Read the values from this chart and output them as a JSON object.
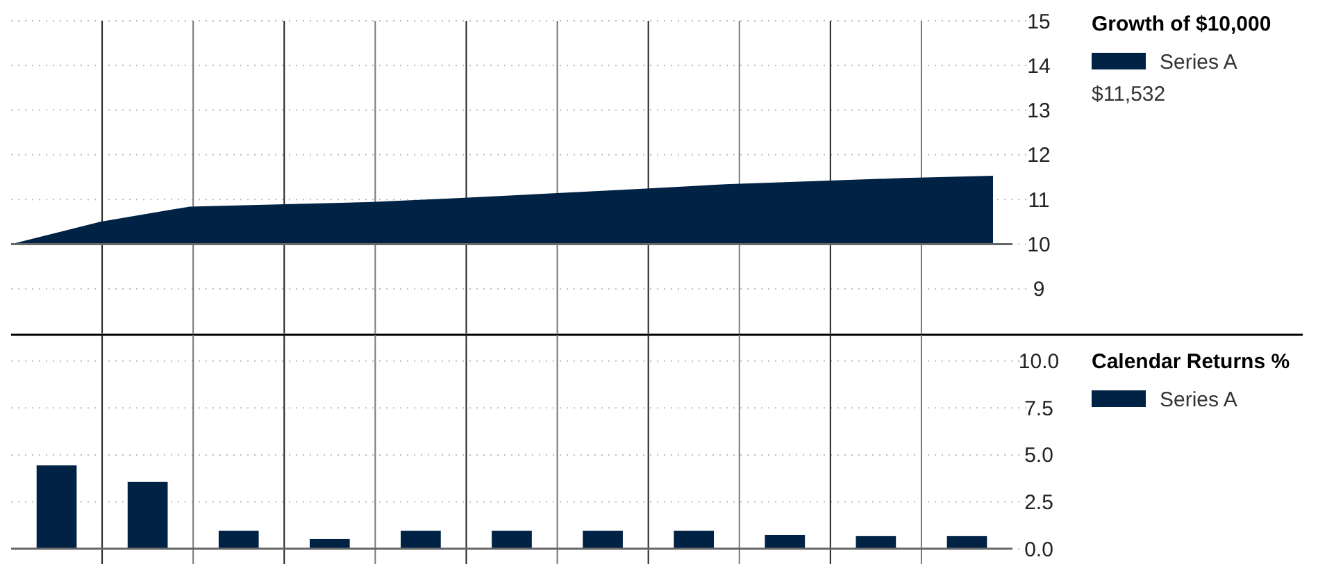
{
  "chart_data": [
    {
      "type": "area",
      "legend_title": "Growth of $10,000",
      "categories": [
        null,
        null,
        null,
        null,
        null,
        null,
        null,
        null,
        null,
        null,
        null,
        null
      ],
      "series": [
        {
          "name": "Series A",
          "color": "#002244",
          "values": [
            10.0,
            10.5,
            10.84,
            10.89,
            10.94,
            11.03,
            11.13,
            11.23,
            11.34,
            11.41,
            11.48,
            11.53
          ]
        }
      ],
      "ylim": [
        8,
        15
      ],
      "yticks": [
        9,
        10,
        11,
        12,
        13,
        14,
        15
      ],
      "grid": true,
      "ref_lines": [
        {
          "axis": "y",
          "value": 10,
          "color": "#666666"
        }
      ],
      "legend": "right",
      "annotations": [
        "$11,532"
      ]
    },
    {
      "type": "bar",
      "legend_title": "Calendar Returns %",
      "categories": [
        null,
        null,
        null,
        null,
        null,
        null,
        null,
        null,
        null,
        null,
        null
      ],
      "series": [
        {
          "name": "Series A",
          "color": "#002244",
          "values": [
            4.44,
            3.56,
            0.96,
            0.52,
            0.96,
            0.96,
            0.96,
            0.96,
            0.74,
            0.67,
            0.67
          ]
        }
      ],
      "ylim": [
        0,
        11.4
      ],
      "yticks": [
        {
          "value": 0,
          "label": "0.0"
        },
        {
          "value": 2.5,
          "label": "2.5"
        },
        {
          "value": 5,
          "label": "5.0"
        },
        {
          "value": 7.5,
          "label": "7.5"
        },
        {
          "value": 10,
          "label": "10.0"
        }
      ],
      "grid": true,
      "legend": "right"
    }
  ]
}
